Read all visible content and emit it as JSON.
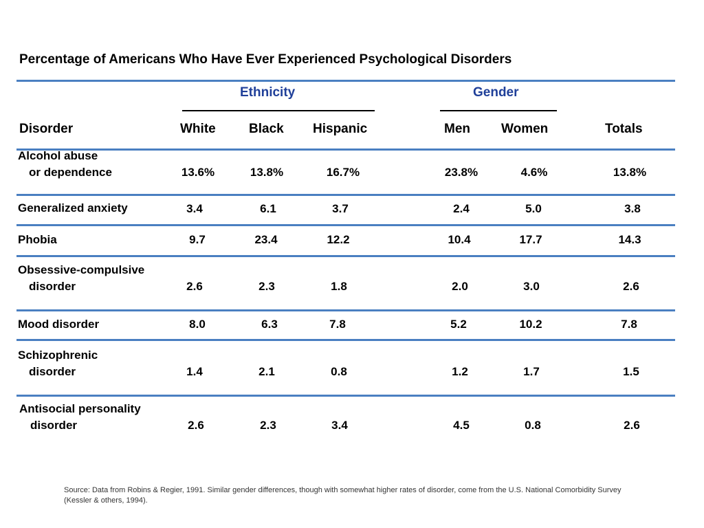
{
  "title": "Percentage of Americans Who Have Ever Experienced Psychological Disorders",
  "groups": {
    "ethnicity": "Ethnicity",
    "gender": "Gender"
  },
  "headers": [
    "Disorder",
    "White",
    "Black",
    "Hispanic",
    "Men",
    "Women",
    "Totals"
  ],
  "rows": [
    {
      "label_line1": "Alcohol abuse",
      "label_line2": "or dependence",
      "values": [
        "13.6%",
        "13.8%",
        "16.7%",
        "23.8%",
        "4.6%",
        "13.8%"
      ]
    },
    {
      "label_line1": "Generalized anxiety",
      "label_line2": "",
      "values": [
        "3.4",
        "6.1",
        "3.7",
        "2.4",
        "5.0",
        "3.8"
      ]
    },
    {
      "label_line1": "Phobia",
      "label_line2": "",
      "values": [
        "9.7",
        "23.4",
        "12.2",
        "10.4",
        "17.7",
        "14.3"
      ]
    },
    {
      "label_line1": "Obsessive-compulsive",
      "label_line2": "disorder",
      "values": [
        "2.6",
        "2.3",
        "1.8",
        "2.0",
        "3.0",
        "2.6"
      ]
    },
    {
      "label_line1": "Mood disorder",
      "label_line2": "",
      "values": [
        "8.0",
        "6.3",
        "7.8",
        "5.2",
        "10.2",
        "7.8"
      ]
    },
    {
      "label_line1": "Schizophrenic",
      "label_line2": "disorder",
      "values": [
        "1.4",
        "2.1",
        "0.8",
        "1.2",
        "1.7",
        "1.5"
      ]
    },
    {
      "label_line1": "Antisocial personality",
      "label_line2": "disorder",
      "values": [
        "2.6",
        "2.3",
        "3.4",
        "4.5",
        "0.8",
        "2.6"
      ]
    }
  ],
  "source": {
    "line1": "Source: Data from Robins & Regier, 1991. Similar gender differences, though with somewhat higher rates of disorder, come from the U.S. National Comorbidity Survey",
    "line2": "(Kessler & others, 1994)."
  },
  "colors": {
    "rule": "#4a7fc1",
    "group_heading": "#1f3f99",
    "text": "#000000"
  }
}
